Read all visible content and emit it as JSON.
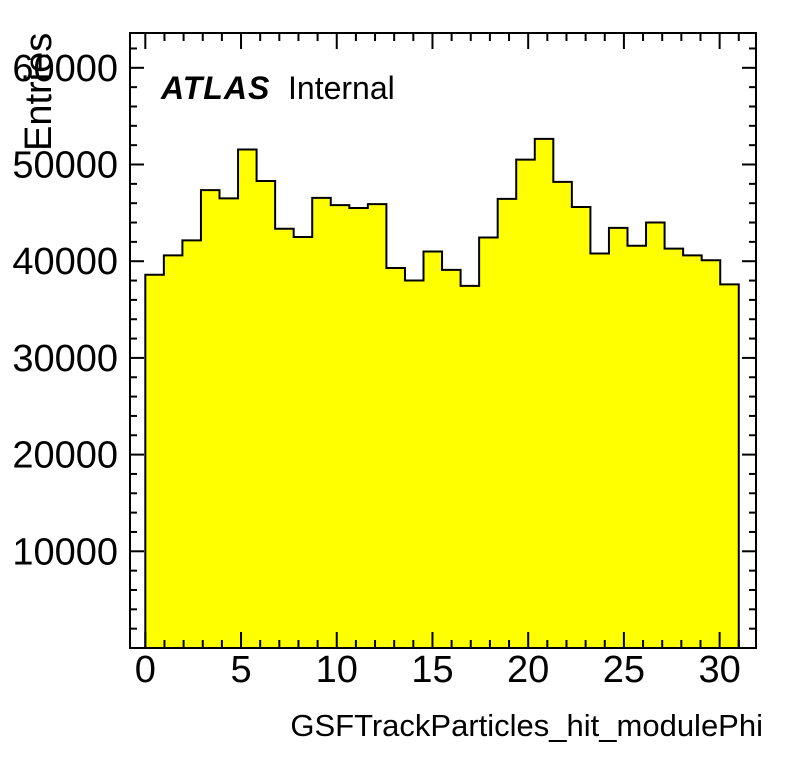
{
  "page": {
    "background_color": "#ffffff"
  },
  "plot": {
    "annotations": {
      "experiment_label": "ATLAS",
      "status_label": "Internal"
    },
    "colors": {
      "histogram_fill": "#ffff00",
      "histogram_line": "#000000",
      "axis_line": "#000000",
      "text": "#000000",
      "background": "#ffffff"
    }
  },
  "chart_data": {
    "type": "bar",
    "subtype": "histogram",
    "title": "",
    "xlabel": "GSFTrackParticles_hit_modulePhi",
    "ylabel": "Entries",
    "grid": false,
    "legend": false,
    "n_bins": 32,
    "bin_range": [
      0,
      31
    ],
    "categories": [
      0,
      1,
      2,
      3,
      4,
      5,
      6,
      7,
      8,
      9,
      10,
      11,
      12,
      13,
      14,
      15,
      16,
      17,
      18,
      19,
      20,
      21,
      22,
      23,
      24,
      25,
      26,
      27,
      28,
      29,
      30,
      31
    ],
    "values": [
      38600,
      40600,
      42150,
      47350,
      46500,
      51550,
      48300,
      43350,
      42500,
      46550,
      45800,
      45500,
      45900,
      39300,
      38000,
      41000,
      39100,
      37450,
      42450,
      46450,
      50500,
      52650,
      48200,
      45600,
      40800,
      43450,
      41600,
      44000,
      41300,
      40600,
      40100,
      37600
    ],
    "xlim": [
      -0.8,
      31.9
    ],
    "ylim": [
      0,
      63600
    ],
    "x_major_ticks": [
      0,
      5,
      10,
      15,
      20,
      25,
      30
    ],
    "x_major_tick_labels": [
      "0",
      "5",
      "10",
      "15",
      "20",
      "25",
      "30"
    ],
    "x_minor_tick_step": 1,
    "y_major_ticks": [
      10000,
      20000,
      30000,
      40000,
      50000,
      60000
    ],
    "y_major_tick_labels": [
      "10000",
      "20000",
      "30000",
      "40000",
      "50000",
      "60000"
    ],
    "y_minor_tick_step": 2000,
    "ticks_mirrored_all_sides": true
  }
}
